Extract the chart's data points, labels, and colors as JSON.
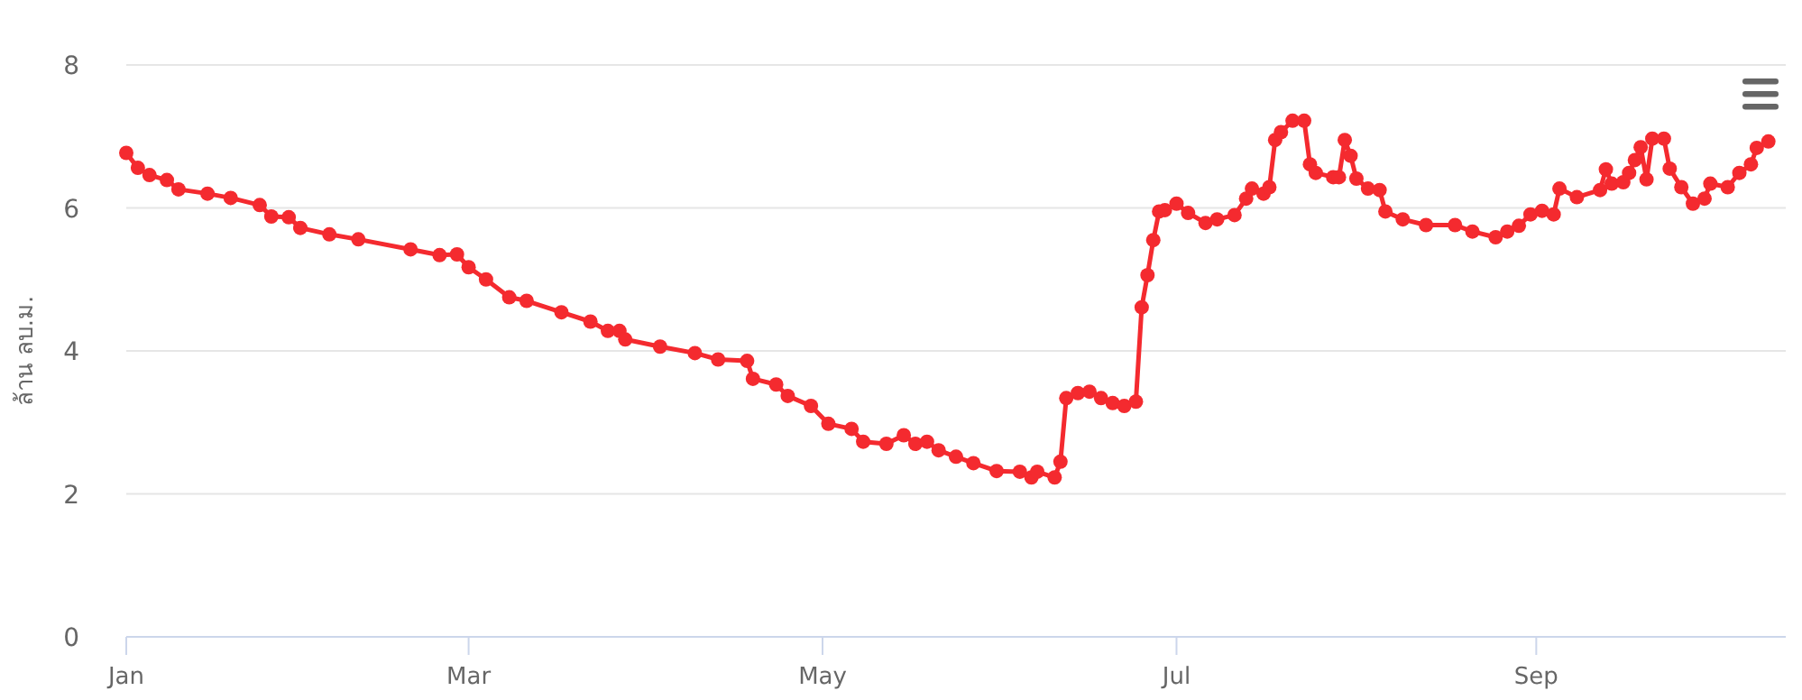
{
  "chart_data": {
    "type": "line",
    "ylabel": "ล้าน ลบ.ม.",
    "ylim": [
      0,
      8
    ],
    "yticks": [
      0,
      2,
      4,
      6,
      8
    ],
    "xlim": [
      "--01-01",
      "--10-14"
    ],
    "xticks": [
      {
        "value": "--01-01",
        "label": "Jan"
      },
      {
        "value": "--03-01",
        "label": "Mar"
      },
      {
        "value": "--05-01",
        "label": "May"
      },
      {
        "value": "--07-01",
        "label": "Jul"
      },
      {
        "value": "--09-01",
        "label": "Sep"
      }
    ],
    "grid": "y",
    "marker": "circle",
    "line_style": "solid",
    "x": [
      "--01-01",
      "--01-03",
      "--01-05",
      "--01-08",
      "--01-10",
      "--01-15",
      "--01-19",
      "--01-24",
      "--01-26",
      "--01-29",
      "--01-31",
      "--02-05",
      "--02-10",
      "--02-19",
      "--02-24",
      "--02-27",
      "--03-01",
      "--03-04",
      "--03-08",
      "--03-11",
      "--03-17",
      "--03-22",
      "--03-25",
      "--03-27",
      "--03-28",
      "--04-03",
      "--04-09",
      "--04-13",
      "--04-18",
      "--04-19",
      "--04-23",
      "--04-25",
      "--04-29",
      "--05-02",
      "--05-06",
      "--05-08",
      "--05-12",
      "--05-15",
      "--05-17",
      "--05-19",
      "--05-21",
      "--05-24",
      "--05-27",
      "--05-31",
      "--06-04",
      "--06-06",
      "--06-07",
      "--06-10",
      "--06-11",
      "--06-12",
      "--06-14",
      "--06-16",
      "--06-18",
      "--06-20",
      "--06-22",
      "--06-24",
      "--06-25",
      "--06-26",
      "--06-27",
      "--06-28",
      "--06-29",
      "--07-01",
      "--07-03",
      "--07-06",
      "--07-08",
      "--07-11",
      "--07-13",
      "--07-14",
      "--07-16",
      "--07-17",
      "--07-18",
      "--07-19",
      "--07-21",
      "--07-23",
      "--07-24",
      "--07-25",
      "--07-28",
      "--07-29",
      "--07-30",
      "--07-31",
      "--08-01",
      "--08-03",
      "--08-05",
      "--08-06",
      "--08-09",
      "--08-13",
      "--08-18",
      "--08-21",
      "--08-25",
      "--08-27",
      "--08-29",
      "--08-31",
      "--09-02",
      "--09-04",
      "--09-05",
      "--09-08",
      "--09-12",
      "--09-13",
      "--09-14",
      "--09-16",
      "--09-17",
      "--09-18",
      "--09-19",
      "--09-20",
      "--09-21",
      "--09-23",
      "--09-24",
      "--09-26",
      "--09-28",
      "--09-30",
      "--10-01",
      "--10-04",
      "--10-06",
      "--10-08",
      "--10-09",
      "--10-11"
    ],
    "series": [
      {
        "color": "#f42a2f",
        "values": [
          6.77,
          6.56,
          6.46,
          6.39,
          6.26,
          6.2,
          6.14,
          6.04,
          5.88,
          5.87,
          5.72,
          5.63,
          5.56,
          5.42,
          5.34,
          5.35,
          5.17,
          5.0,
          4.75,
          4.7,
          4.54,
          4.41,
          4.28,
          4.28,
          4.16,
          4.06,
          3.97,
          3.88,
          3.86,
          3.61,
          3.53,
          3.37,
          3.23,
          2.98,
          2.91,
          2.73,
          2.7,
          2.82,
          2.7,
          2.73,
          2.61,
          2.52,
          2.43,
          2.32,
          2.31,
          2.23,
          2.31,
          2.23,
          2.45,
          3.34,
          3.41,
          3.43,
          3.34,
          3.27,
          3.23,
          3.29,
          4.61,
          5.06,
          5.55,
          5.95,
          5.97,
          6.06,
          5.93,
          5.79,
          5.84,
          5.9,
          6.13,
          6.27,
          6.2,
          6.29,
          6.95,
          7.06,
          7.22,
          7.22,
          6.61,
          6.49,
          6.43,
          6.43,
          6.95,
          6.73,
          6.41,
          6.27,
          6.25,
          5.95,
          5.84,
          5.76,
          5.76,
          5.67,
          5.59,
          5.67,
          5.75,
          5.91,
          5.96,
          5.91,
          6.27,
          6.15,
          6.25,
          6.54,
          6.34,
          6.36,
          6.49,
          6.67,
          6.85,
          6.4,
          6.97,
          6.97,
          6.55,
          6.29,
          6.06,
          6.13,
          6.34,
          6.29,
          6.49,
          6.61,
          6.84,
          6.93
        ]
      }
    ]
  }
}
